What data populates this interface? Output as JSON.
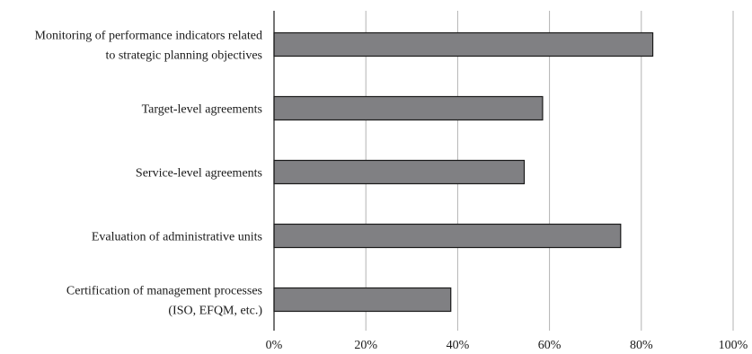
{
  "chart_data": {
    "type": "bar",
    "orientation": "horizontal",
    "title": "",
    "xlabel": "",
    "ylabel": "",
    "categories": [
      [
        "Monitoring of performance indicators related",
        "to strategic planning objectives"
      ],
      [
        "Target-level agreements"
      ],
      [
        "Service-level agreements"
      ],
      [
        "Evaluation of administrative units"
      ],
      [
        "Certification of management processes",
        "(ISO, EFQM, etc.)"
      ]
    ],
    "values": [
      82.5,
      58.5,
      54.5,
      75.5,
      38.5
    ],
    "xlim": [
      0,
      100
    ],
    "xticks": [
      0,
      20,
      40,
      60,
      80,
      100
    ],
    "xtick_labels": [
      "0%",
      "20%",
      "40%",
      "60%",
      "80%",
      "100%"
    ],
    "grid": "vertical",
    "legend": "none",
    "bar_color": "#808083",
    "bar_edge_color": "#1a1a1a",
    "grid_color": "#b3b3b3"
  }
}
